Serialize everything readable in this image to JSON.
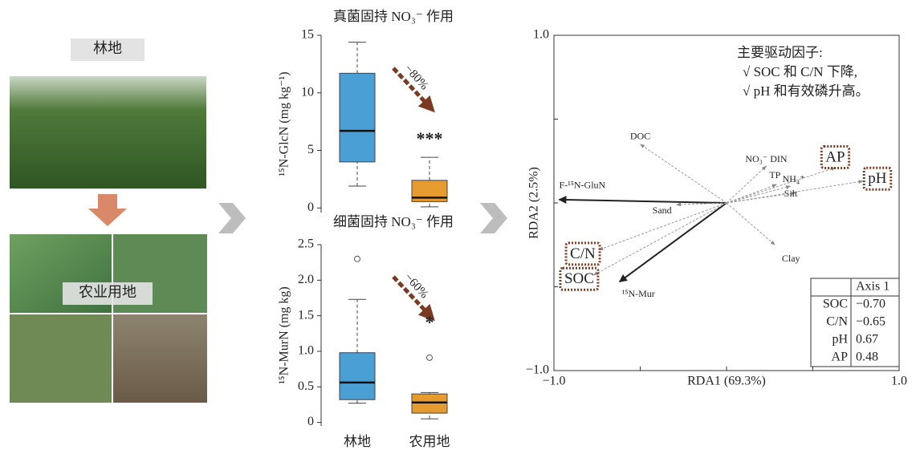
{
  "photo_labels": [
    "林地",
    "农业用地"
  ],
  "chart_data": [
    {
      "type": "box",
      "title": "真菌固持 NO₃⁻ 作用",
      "ylabel": "¹⁵N-GlcN (mg kg⁻¹)",
      "ylim": [
        -0.4,
        15
      ],
      "yticks": [
        0,
        5,
        10,
        15
      ],
      "boxes": [
        {
          "color": "#4a9fd4",
          "min": 1.9,
          "q1": 4.0,
          "median": 6.7,
          "q3": 11.7,
          "max": 14.4,
          "outliers": []
        },
        {
          "color": "#e69b2e",
          "min": 0.1,
          "q1": 0.55,
          "median": 0.9,
          "q3": 2.4,
          "max": 4.4,
          "outliers": []
        }
      ],
      "change_label": "−80%",
      "significance": "***"
    },
    {
      "type": "box",
      "title": "细菌固持 NO₃⁻ 作用",
      "ylabel": "¹⁵N-MurN (mg kg)",
      "ylim": [
        -0.05,
        2.5
      ],
      "yticks": [
        0,
        0.5,
        {
          "value": 1,
          "label": "1.0"
        },
        1.5,
        {
          "value": 2,
          "label": "2.0"
        },
        2.5
      ],
      "categories": [
        "林地",
        "农用地"
      ],
      "boxes": [
        {
          "color": "#4a9fd4",
          "min": 0.27,
          "q1": 0.32,
          "median": 0.56,
          "q3": 0.98,
          "max": 1.73,
          "outliers": [
            2.3
          ]
        },
        {
          "color": "#e69b2e",
          "min": 0.05,
          "q1": 0.13,
          "median": 0.28,
          "q3": 0.4,
          "max": 0.42,
          "outliers": [
            0.91
          ]
        }
      ],
      "change_label": "−60%",
      "significance": "*"
    },
    {
      "type": "biplot",
      "xlabel": "RDA1 (69.3%)",
      "ylabel": "RDA2 (2.5%)",
      "xlim": [
        -1,
        1
      ],
      "ylim": [
        -1,
        1
      ],
      "xticks": [
        {
          "value": -1,
          "label": "−1.0"
        },
        {
          "value": 1,
          "label": "1.0"
        }
      ],
      "yticks": [
        {
          "value": -1,
          "label": "−1.0"
        },
        {
          "value": 1,
          "label": "1.0"
        }
      ],
      "minor_ticks": [
        -0.5,
        0,
        0.5
      ],
      "vectors": [
        {
          "name": "F-¹⁵N-GluN",
          "x": -0.97,
          "y": 0.02,
          "response": true
        },
        {
          "name": "¹⁵N-Mur",
          "x": -0.62,
          "y": -0.47,
          "response": true
        },
        {
          "name": "DOC",
          "x": -0.5,
          "y": 0.35
        },
        {
          "name": "Sand",
          "x": -0.29,
          "y": -0.01
        },
        {
          "name": "C/N",
          "x": -0.74,
          "y": -0.28,
          "highlight": true
        },
        {
          "name": "SOC",
          "x": -0.77,
          "y": -0.43,
          "highlight": true
        },
        {
          "name": "Clay",
          "x": 0.28,
          "y": -0.25
        },
        {
          "name": "NO₃⁻ DIN",
          "x": 0.23,
          "y": 0.22
        },
        {
          "name": "TP",
          "x": 0.29,
          "y": 0.11
        },
        {
          "name": "NH₄⁺",
          "x": 0.37,
          "y": 0.1
        },
        {
          "name": "Silt",
          "x": 0.4,
          "y": 0.06
        },
        {
          "name": "AP",
          "x": 0.63,
          "y": 0.21,
          "highlight": true
        },
        {
          "name": "pH",
          "x": 0.79,
          "y": 0.13,
          "highlight": true
        }
      ],
      "notes": [
        "主要驱动因子:",
        "√  SOC 和 C/N 下降,",
        "√  pH 和有效磷升高。"
      ],
      "table": {
        "header": "Axis 1",
        "rows": [
          {
            "label": "SOC",
            "value": "−0.70"
          },
          {
            "label": "C/N",
            "value": "−0.65"
          },
          {
            "label": "pH",
            "value": "0.67"
          },
          {
            "label": "AP",
            "value": "0.48"
          }
        ]
      }
    }
  ]
}
